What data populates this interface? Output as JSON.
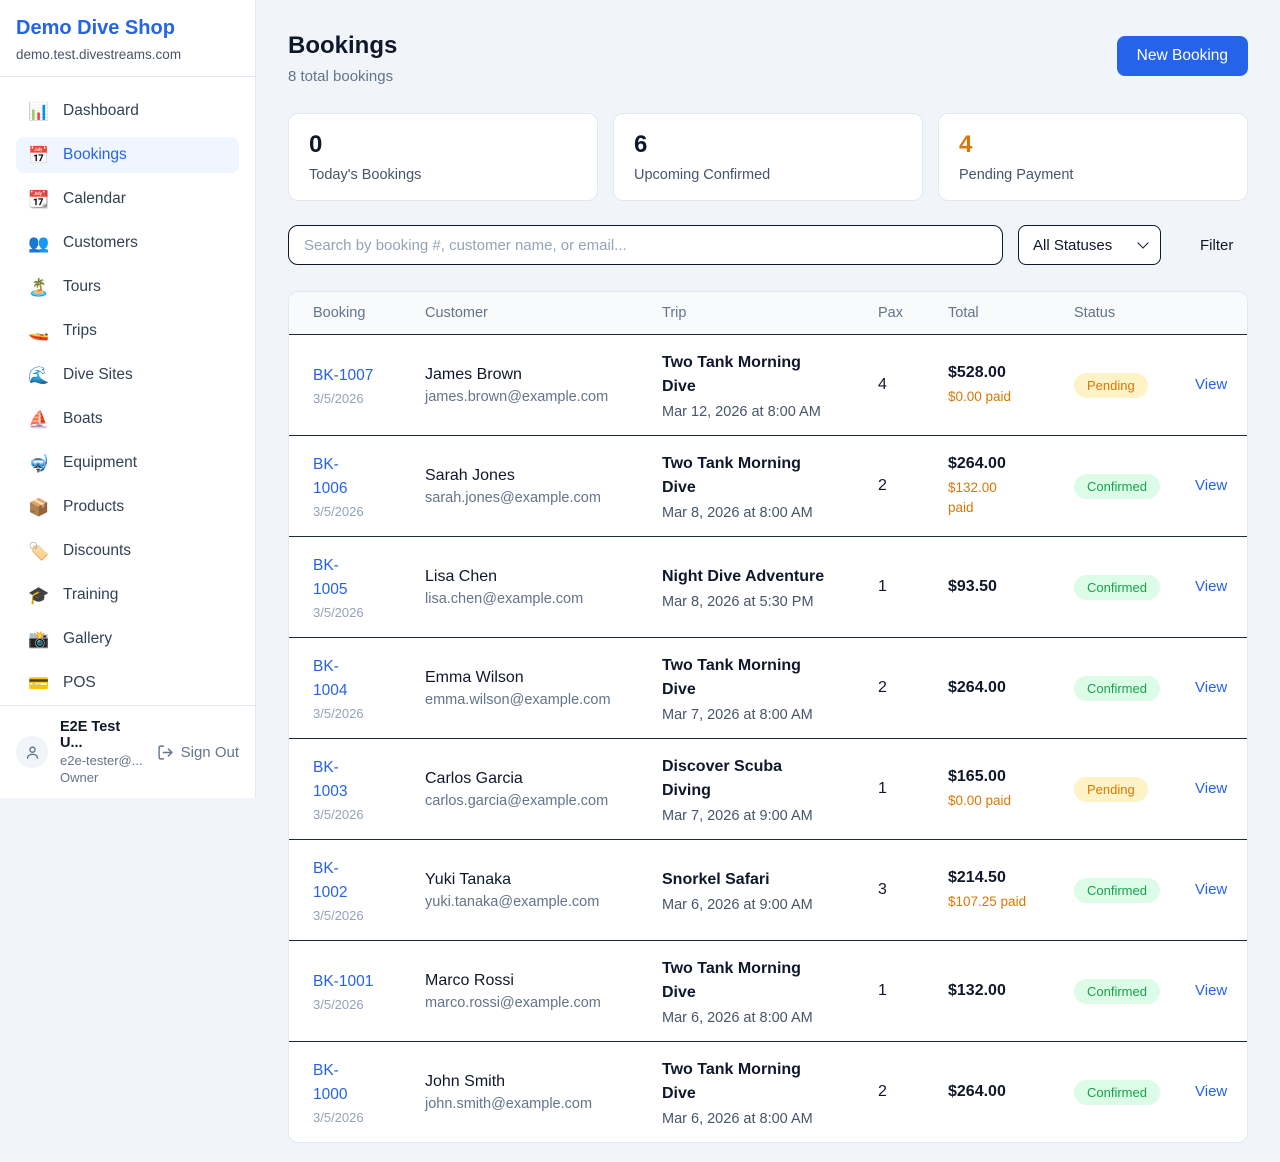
{
  "colors": {
    "accent_blue": "#2563eb",
    "orange": "#d97706",
    "green": "#16a34a",
    "pending_bg": "#fef3c7",
    "confirmed_bg": "#dcfce7"
  },
  "sidebar": {
    "brand": "Demo Dive Shop",
    "domain": "demo.test.divestreams.com",
    "nav": [
      {
        "icon": "📊",
        "label": "Dashboard",
        "active": false
      },
      {
        "icon": "📅",
        "label": "Bookings",
        "active": true
      },
      {
        "icon": "📆",
        "label": "Calendar",
        "active": false
      },
      {
        "icon": "👥",
        "label": "Customers",
        "active": false
      },
      {
        "icon": "🏝️",
        "label": "Tours",
        "active": false
      },
      {
        "icon": "🚤",
        "label": "Trips",
        "active": false
      },
      {
        "icon": "🌊",
        "label": "Dive Sites",
        "active": false
      },
      {
        "icon": "⛵",
        "label": "Boats",
        "active": false
      },
      {
        "icon": "🤿",
        "label": "Equipment",
        "active": false
      },
      {
        "icon": "📦",
        "label": "Products",
        "active": false
      },
      {
        "icon": "🏷️",
        "label": "Discounts",
        "active": false
      },
      {
        "icon": "🎓",
        "label": "Training",
        "active": false
      },
      {
        "icon": "📸",
        "label": "Gallery",
        "active": false
      },
      {
        "icon": "💳",
        "label": "POS",
        "active": false
      }
    ],
    "user": {
      "name": "E2E Test U...",
      "email": "e2e-tester@...",
      "role": "Owner",
      "sign_out": "Sign Out"
    }
  },
  "header": {
    "title": "Bookings",
    "subtitle": "8 total bookings",
    "new_booking": "New Booking"
  },
  "stats": [
    {
      "value": "0",
      "label": "Today's Bookings",
      "color": "#0f172a"
    },
    {
      "value": "6",
      "label": "Upcoming Confirmed",
      "color": "#0f172a"
    },
    {
      "value": "4",
      "label": "Pending Payment",
      "color": "#d97706"
    }
  ],
  "filters": {
    "search_placeholder": "Search by booking #, customer name, or email...",
    "status_selected": "All Statuses",
    "filter_button": "Filter"
  },
  "table": {
    "columns": [
      "Booking",
      "Customer",
      "Trip",
      "Pax",
      "Total",
      "Status"
    ],
    "action_label": "View",
    "rows": [
      {
        "id": "BK-1007",
        "date": "3/5/2026",
        "customer": "James Brown",
        "email": "james.brown@example.com",
        "trip": "Two Tank Morning\nDive",
        "trip_time": "Mar 12, 2026 at 8:00 AM",
        "pax": "4",
        "total": "$528.00",
        "paid": "$0.00 paid",
        "status": "Pending"
      },
      {
        "id": "BK-\n1006",
        "date": "3/5/2026",
        "customer": "Sarah Jones",
        "email": "sarah.jones@example.com",
        "trip": "Two Tank Morning\nDive",
        "trip_time": "Mar 8, 2026 at 8:00 AM",
        "pax": "2",
        "total": "$264.00",
        "paid": "$132.00\npaid",
        "status": "Confirmed"
      },
      {
        "id": "BK-\n1005",
        "date": "3/5/2026",
        "customer": "Lisa Chen",
        "email": "lisa.chen@example.com",
        "trip": "Night Dive Adventure",
        "trip_time": "Mar 8, 2026 at 5:30 PM",
        "pax": "1",
        "total": "$93.50",
        "paid": "",
        "status": "Confirmed"
      },
      {
        "id": "BK-\n1004",
        "date": "3/5/2026",
        "customer": "Emma Wilson",
        "email": "emma.wilson@example.com",
        "trip": "Two Tank Morning\nDive",
        "trip_time": "Mar 7, 2026 at 8:00 AM",
        "pax": "2",
        "total": "$264.00",
        "paid": "",
        "status": "Confirmed"
      },
      {
        "id": "BK-\n1003",
        "date": "3/5/2026",
        "customer": "Carlos Garcia",
        "email": "carlos.garcia@example.com",
        "trip": "Discover Scuba\nDiving",
        "trip_time": "Mar 7, 2026 at 9:00 AM",
        "pax": "1",
        "total": "$165.00",
        "paid": "$0.00 paid",
        "status": "Pending"
      },
      {
        "id": "BK-\n1002",
        "date": "3/5/2026",
        "customer": "Yuki Tanaka",
        "email": "yuki.tanaka@example.com",
        "trip": "Snorkel Safari",
        "trip_time": "Mar 6, 2026 at 9:00 AM",
        "pax": "3",
        "total": "$214.50",
        "paid": "$107.25 paid",
        "status": "Confirmed"
      },
      {
        "id": "BK-1001",
        "date": "3/5/2026",
        "customer": "Marco Rossi",
        "email": "marco.rossi@example.com",
        "trip": "Two Tank Morning\nDive",
        "trip_time": "Mar 6, 2026 at 8:00 AM",
        "pax": "1",
        "total": "$132.00",
        "paid": "",
        "status": "Confirmed"
      },
      {
        "id": "BK-\n1000",
        "date": "3/5/2026",
        "customer": "John Smith",
        "email": "john.smith@example.com",
        "trip": "Two Tank Morning\nDive",
        "trip_time": "Mar 6, 2026 at 8:00 AM",
        "pax": "2",
        "total": "$264.00",
        "paid": "",
        "status": "Confirmed"
      }
    ]
  }
}
